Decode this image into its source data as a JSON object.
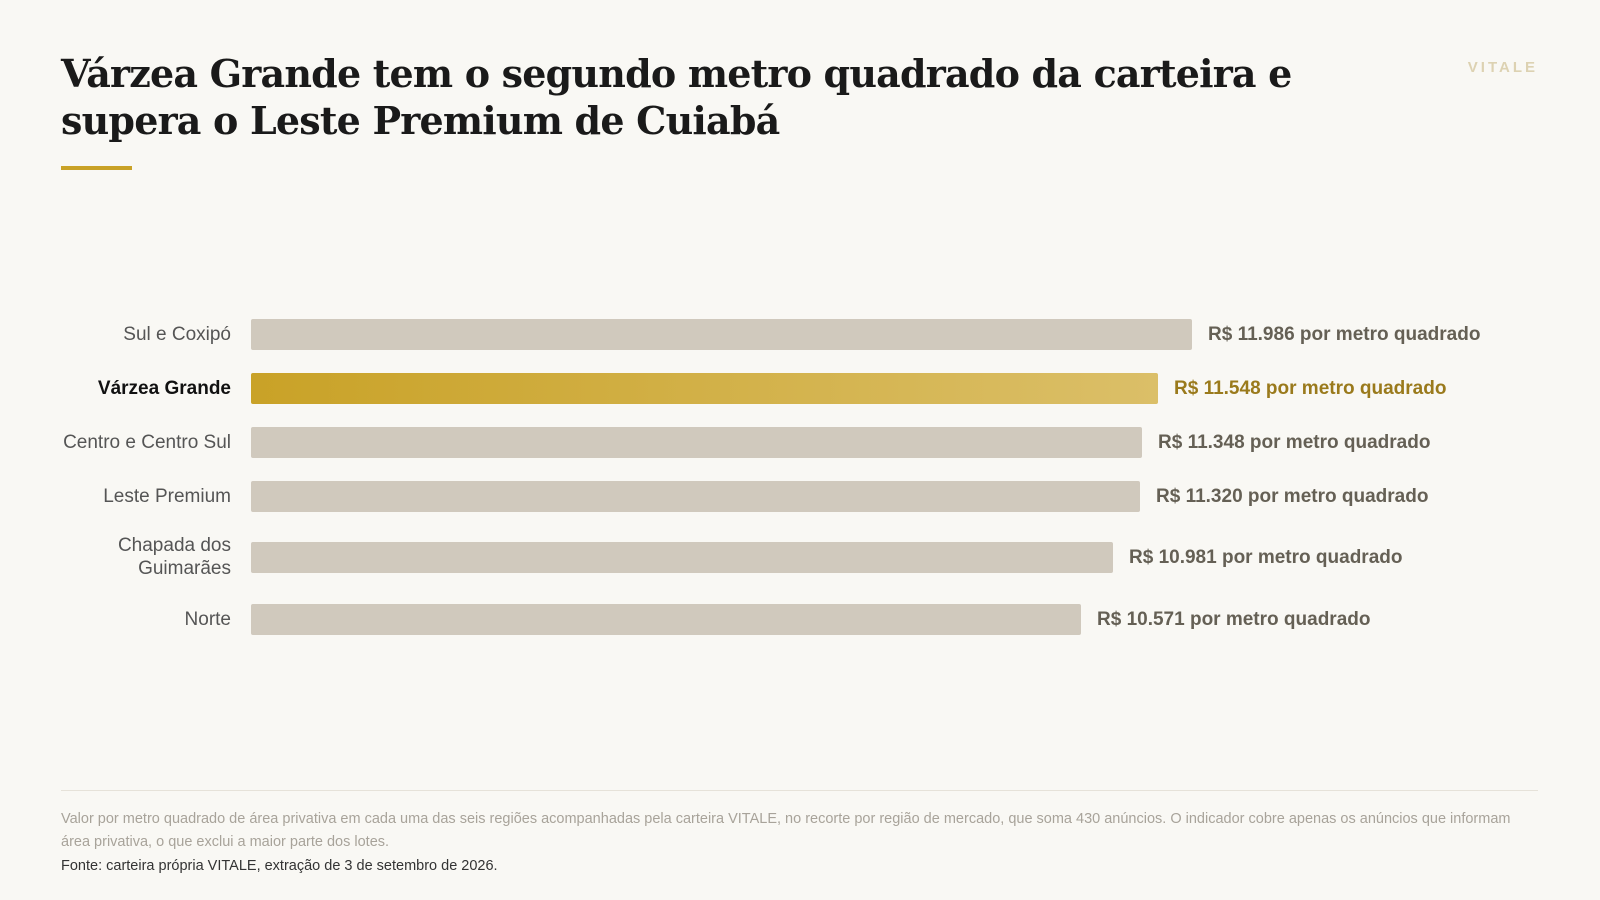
{
  "header": {
    "title": "Várzea Grande tem o segundo metro quadrado da carteira e supera o Leste Premium de Cuiabá",
    "brand": "VITALE"
  },
  "chart_data": {
    "type": "bar",
    "orientation": "horizontal",
    "categories": [
      "Sul e Coxipó",
      "Várzea Grande",
      "Centro e Centro Sul",
      "Leste Premium",
      "Chapada dos Guimarães",
      "Norte"
    ],
    "values": [
      11986,
      11548,
      11348,
      11320,
      10981,
      10571
    ],
    "value_labels": [
      "R$ 11.986 por metro quadrado",
      "R$ 11.548 por metro quadrado",
      "R$ 11.348 por metro quadrado",
      "R$ 11.320 por metro quadrado",
      "R$ 10.981 por metro quadrado",
      "R$ 10.571 por metro quadrado"
    ],
    "highlight": "Várzea Grande",
    "colors": {
      "default": "#d0c9bd",
      "highlight": "#c9a227",
      "highlight_end": "#dbbf68"
    },
    "xlim": [
      0,
      11986
    ],
    "grid": false
  },
  "footer": {
    "note": "Valor por metro quadrado de área privativa em cada uma das seis regiões acompanhadas pela carteira VITALE, no recorte por região de mercado, que soma 430 anúncios. O indicador cobre apenas os anúncios que informam área privativa, o que exclui a maior parte dos lotes.",
    "source": "Fonte: carteira própria VITALE, extração de 3 de setembro de 2026."
  }
}
